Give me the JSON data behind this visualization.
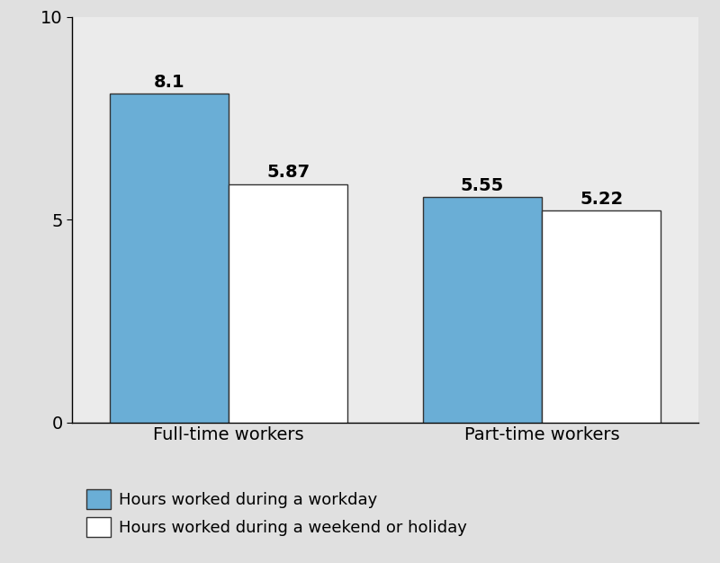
{
  "categories": [
    "Full-time workers",
    "Part-time workers"
  ],
  "workday_values": [
    8.1,
    5.55
  ],
  "weekend_values": [
    5.87,
    5.22
  ],
  "workday_color": "#6aaed6",
  "weekend_color": "#ffffff",
  "bar_edge_color": "#333333",
  "ylim": [
    0,
    10
  ],
  "yticks": [
    0,
    5,
    10
  ],
  "tick_fontsize": 14,
  "value_fontsize": 14,
  "legend_fontsize": 13,
  "figure_background_color": "#e0e0e0",
  "plot_background_color": "#ebebeb",
  "legend_workday": "Hours worked during a workday",
  "legend_weekend": "Hours worked during a weekend or holiday",
  "bar_width": 0.38,
  "group_positions": [
    0.45,
    1.45
  ]
}
